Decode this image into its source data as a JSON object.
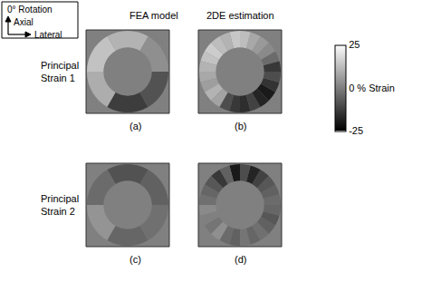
{
  "chart_data": {
    "type": "ring_strain_map",
    "legend_box": {
      "title": "0° Rotation",
      "axes": [
        "Axial",
        "Lateral"
      ]
    },
    "columns": [
      "FEA model",
      "2DE estimation"
    ],
    "rows": [
      "Principal Strain 1",
      "Principal Strain 2"
    ],
    "panels": [
      {
        "label": "(a)",
        "values": [
          3,
          10,
          13,
          9,
          -13,
          -9
        ]
      },
      {
        "label": "(b)",
        "values": [
          -14,
          -4,
          2,
          5,
          8,
          12,
          14,
          10,
          12,
          15,
          13,
          10,
          8,
          6,
          10,
          7,
          -10,
          -14,
          -16,
          -12,
          -18,
          -20,
          -15,
          -10
        ]
      },
      {
        "label": "(c)",
        "values": [
          -6,
          -9,
          -4,
          4,
          -5,
          -3
        ]
      },
      {
        "label": "(d)",
        "values": [
          -4,
          -6,
          -8,
          -12,
          -18,
          -10,
          -20,
          -6,
          -14,
          -8,
          -5,
          -3,
          2,
          0,
          -2,
          3,
          -4,
          -6,
          -2,
          -5,
          -3,
          -6,
          -8,
          -5
        ]
      }
    ],
    "colorbar_range": [
      -25,
      25
    ],
    "colorbar_ticks": [
      25,
      {
        "value": 0,
        "label": "0 % Strain"
      },
      -25
    ]
  }
}
